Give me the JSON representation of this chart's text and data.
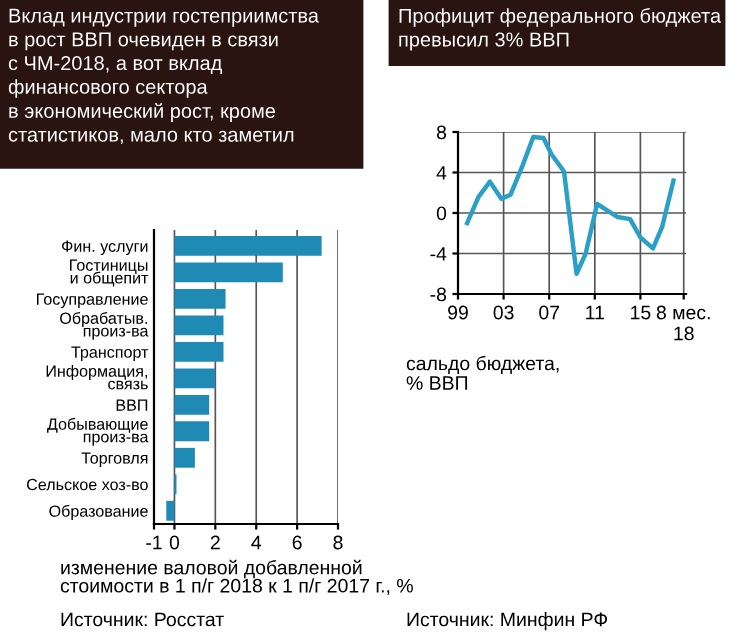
{
  "chart_data": [
    {
      "type": "bar",
      "orientation": "horizontal",
      "title": "Вклад индустрии гостеприимства\nв рост ВВП очевиден в связи\nс ЧМ-2018, а вот вклад\nфинансового сектора\nв экономический рост, кроме\nстатистиков, мало кто заметил",
      "categories": [
        "Фин. услуги",
        "Гостиницы\nи общепит",
        "Госуправление",
        "Обрабатыв.\nпроиз-ва",
        "Транспорт",
        "Информация,\nсвязь",
        "ВВП",
        "Добывающие\nпроиз-ва",
        "Торговля",
        "Сельское хоз-во",
        "Образование"
      ],
      "values": [
        7.2,
        5.3,
        2.5,
        2.4,
        2.4,
        2.0,
        1.7,
        1.7,
        1.0,
        0.1,
        -0.4
      ],
      "color": "#1f8bb5",
      "xlim": [
        -1,
        8
      ],
      "xticks": [
        -1,
        0,
        2,
        4,
        6,
        8
      ],
      "grid": "x",
      "xlabel": "изменение валовой добавленной\nстоимости в 1 п/г 2018 к 1 п/г 2017 г., %",
      "annotations": [
        "Источник: Росстат"
      ]
    },
    {
      "type": "line",
      "title": "Профицит федерального бюджета\nпревысил 3% ВВП",
      "x": [
        1999.8,
        2000.8,
        2001.8,
        2002.8,
        2003.6,
        2004.6,
        2005.6,
        2006.5,
        2007.2,
        2008.3,
        2009.4,
        2010.2,
        2011.2,
        2013.0,
        2014.1,
        2015.0,
        2016.1,
        2016.9,
        2017.9
      ],
      "series": [
        {
          "color": "#2a9fc7",
          "values": [
            -1.0,
            1.6,
            3.1,
            1.4,
            1.8,
            4.5,
            7.5,
            7.4,
            5.8,
            4.1,
            -6.0,
            -4.0,
            0.9,
            -0.4,
            -0.6,
            -2.4,
            -3.5,
            -1.4,
            3.2
          ]
        }
      ],
      "xlim": [
        1999,
        2019
      ],
      "xticks": [
        {
          "value": 1999,
          "label": "99"
        },
        {
          "value": 2003,
          "label": "03"
        },
        {
          "value": 2007,
          "label": "07"
        },
        {
          "value": 2011,
          "label": "11"
        },
        {
          "value": 2015,
          "label": "15"
        },
        {
          "value": 2018.8,
          "label": "8 мес.\n18"
        }
      ],
      "ylim": [
        -8,
        8
      ],
      "yticks": [
        -8,
        -4,
        0,
        4,
        8
      ],
      "grid": true,
      "ylabel": "сальдо бюджета,\n% ВВП",
      "annotations": [
        "Источник: Минфин РФ"
      ]
    }
  ]
}
